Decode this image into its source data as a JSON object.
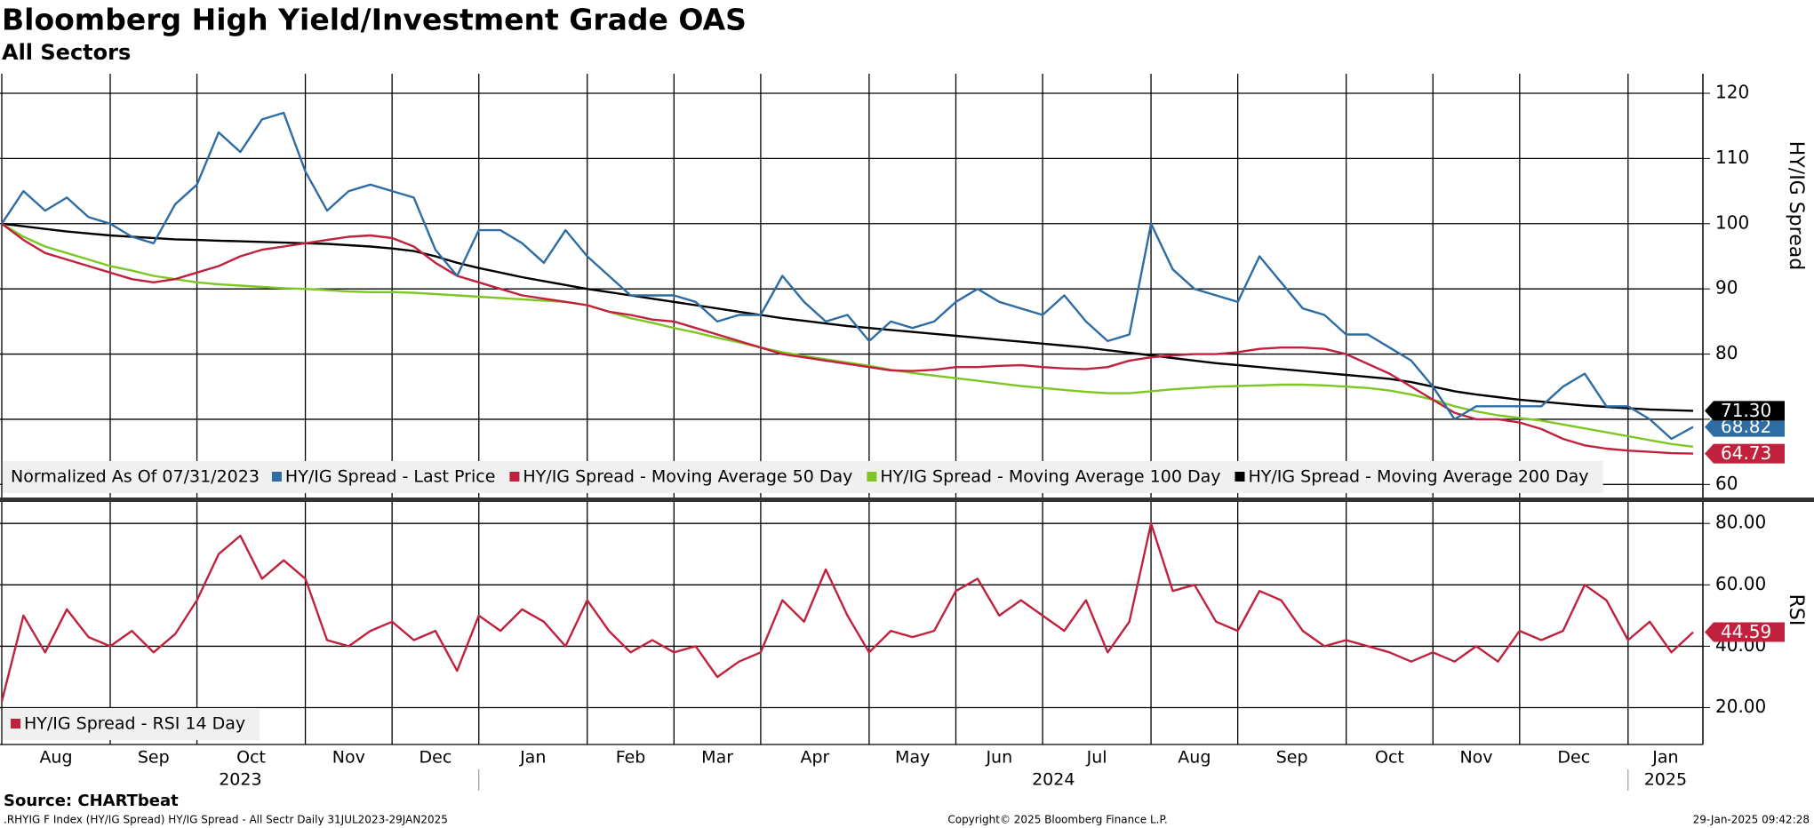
{
  "chart_data": [
    {
      "type": "line",
      "title": "Bloomberg High Yield/Investment Grade OAS",
      "subtitle": "All Sectors",
      "y_label": "HY/IG Spread",
      "legend_note": "Normalized As Of 07/31/2023",
      "categories": [
        "Aug",
        null,
        null,
        null,
        null,
        "Sep",
        null,
        null,
        null,
        "Oct",
        null,
        null,
        null,
        null,
        "Nov",
        null,
        null,
        null,
        "Dec",
        null,
        null,
        null,
        "Jan",
        null,
        null,
        null,
        null,
        "Feb",
        null,
        null,
        null,
        "Mar",
        null,
        null,
        null,
        "Apr",
        null,
        null,
        null,
        null,
        "May",
        null,
        null,
        null,
        "Jun",
        null,
        null,
        null,
        "Jul",
        null,
        null,
        null,
        null,
        "Aug",
        null,
        null,
        null,
        "Sep",
        null,
        null,
        null,
        null,
        "Oct",
        null,
        null,
        null,
        "Nov",
        null,
        null,
        null,
        "Dec",
        null,
        null,
        null,
        null,
        "Jan",
        null,
        null,
        null
      ],
      "years": [
        {
          "label": "2023",
          "span": [
            0,
            21
          ]
        },
        {
          "label": "2024",
          "span": [
            22,
            74
          ]
        },
        {
          "label": "2025",
          "span": [
            75,
            78
          ]
        }
      ],
      "ylim": [
        58,
        123
      ],
      "yticks": [
        60,
        70,
        80,
        90,
        100,
        110,
        120
      ],
      "grid": true,
      "series": [
        {
          "name": "HY/IG Spread - Last Price",
          "color": "#2e6da4",
          "last_label": "68.82",
          "values": [
            100,
            105,
            102,
            104,
            101,
            100,
            98,
            97,
            103,
            106,
            114,
            111,
            116,
            117,
            108,
            102,
            105,
            106,
            105,
            104,
            96,
            92,
            99,
            99,
            97,
            94,
            99,
            95,
            92,
            89,
            89,
            89,
            88,
            85,
            86,
            86,
            92,
            88,
            85,
            86,
            82,
            85,
            84,
            85,
            88,
            90,
            88,
            87,
            86,
            89,
            85,
            82,
            83,
            100,
            93,
            90,
            89,
            88,
            95,
            91,
            87,
            86,
            83,
            83,
            81,
            79,
            75,
            70,
            72,
            72,
            72,
            72,
            75,
            77,
            72,
            72,
            70,
            67,
            68.82
          ]
        },
        {
          "name": "HY/IG Spread - Moving Average 50 Day",
          "color": "#c0213c",
          "last_label": "64.73",
          "values": [
            100,
            97.5,
            95.5,
            94.5,
            93.5,
            92.5,
            91.5,
            91,
            91.5,
            92.5,
            93.5,
            95,
            96,
            96.5,
            97,
            97.5,
            98,
            98.2,
            97.8,
            96.5,
            94,
            92,
            91,
            90,
            89,
            88.5,
            88,
            87.5,
            86.5,
            86,
            85.3,
            85,
            84,
            83,
            82,
            81,
            80,
            79.5,
            79,
            78.5,
            78,
            77.5,
            77.4,
            77.6,
            78,
            78,
            78.2,
            78.3,
            78,
            77.8,
            77.7,
            78,
            79,
            79.5,
            79.8,
            80,
            80,
            80.3,
            80.8,
            81,
            81,
            80.8,
            80,
            78.5,
            77,
            75,
            73,
            71,
            70,
            70,
            69.5,
            68.5,
            67,
            66,
            65.5,
            65.2,
            65,
            64.8,
            64.73
          ]
        },
        {
          "name": "HY/IG Spread - Moving Average 100 Day",
          "color": "#7dc623",
          "values": [
            100,
            98,
            96.5,
            95.5,
            94.5,
            93.5,
            92.8,
            92,
            91.5,
            91,
            90.7,
            90.5,
            90.3,
            90.1,
            90,
            89.8,
            89.6,
            89.5,
            89.5,
            89.4,
            89.2,
            89,
            88.8,
            88.6,
            88.4,
            88.2,
            88,
            87.5,
            86.5,
            85.5,
            84.8,
            84,
            83.3,
            82.5,
            81.8,
            81,
            80.3,
            79.7,
            79.2,
            78.7,
            78.2,
            77.6,
            77.1,
            76.7,
            76.3,
            75.9,
            75.5,
            75.1,
            74.8,
            74.5,
            74.2,
            74,
            74,
            74.3,
            74.6,
            74.8,
            75,
            75.1,
            75.2,
            75.3,
            75.3,
            75.2,
            75,
            74.8,
            74.4,
            73.8,
            73,
            72,
            71.2,
            70.6,
            70.2,
            69.8,
            69.2,
            68.6,
            68,
            67.4,
            66.8,
            66.2,
            65.8
          ]
        },
        {
          "name": "HY/IG Spread - Moving Average 200 Day",
          "color": "#000000",
          "last_label": "71.30",
          "values": [
            100,
            99.6,
            99.2,
            98.8,
            98.5,
            98.2,
            98,
            97.8,
            97.6,
            97.5,
            97.4,
            97.3,
            97.2,
            97.1,
            97,
            96.9,
            96.7,
            96.5,
            96.2,
            95.8,
            95,
            94,
            93.2,
            92.5,
            91.8,
            91.2,
            90.6,
            90,
            89.5,
            89,
            88.5,
            88,
            87.5,
            87,
            86.5,
            86,
            85.5,
            85.1,
            84.7,
            84.3,
            84,
            83.7,
            83.4,
            83.1,
            82.8,
            82.5,
            82.2,
            81.9,
            81.6,
            81.3,
            81,
            80.6,
            80.2,
            79.8,
            79.4,
            79,
            78.6,
            78.3,
            78,
            77.7,
            77.4,
            77.1,
            76.8,
            76.5,
            76.2,
            75.7,
            75,
            74.3,
            73.8,
            73.4,
            73,
            72.7,
            72.4,
            72.1,
            71.9,
            71.7,
            71.5,
            71.4,
            71.3
          ]
        }
      ]
    },
    {
      "type": "line",
      "y_label": "RSI",
      "ylim": [
        8,
        87
      ],
      "yticks": [
        {
          "value": 20,
          "label": "20.00"
        },
        {
          "value": 40,
          "label": "40.00"
        },
        {
          "value": 60,
          "label": "60.00"
        },
        {
          "value": 80,
          "label": "80.00"
        }
      ],
      "grid": true,
      "series": [
        {
          "name": "HY/IG Spread - RSI 14 Day",
          "color": "#c0213c",
          "last_label": "44.59",
          "values": [
            22,
            50,
            38,
            52,
            43,
            40,
            45,
            38,
            44,
            55,
            70,
            76,
            62,
            68,
            62,
            42,
            40,
            45,
            48,
            42,
            45,
            32,
            50,
            45,
            52,
            48,
            40,
            55,
            45,
            38,
            42,
            38,
            40,
            30,
            35,
            38,
            55,
            48,
            65,
            50,
            38,
            45,
            43,
            45,
            58,
            62,
            50,
            55,
            50,
            45,
            55,
            38,
            48,
            80,
            58,
            60,
            48,
            45,
            58,
            55,
            45,
            40,
            42,
            40,
            38,
            35,
            38,
            35,
            40,
            35,
            45,
            42,
            45,
            60,
            55,
            42,
            48,
            38,
            44.59
          ]
        }
      ]
    }
  ],
  "footer": {
    "source": "Source: CHARTbeat",
    "index": ".RHYIG F Index (HY/IG Spread) HY/IG Spread - All Sectr  Daily 31JUL2023-29JAN2025",
    "copyright": "Copyright© 2025 Bloomberg Finance L.P.",
    "timestamp": "29-Jan-2025 09:42:28"
  }
}
